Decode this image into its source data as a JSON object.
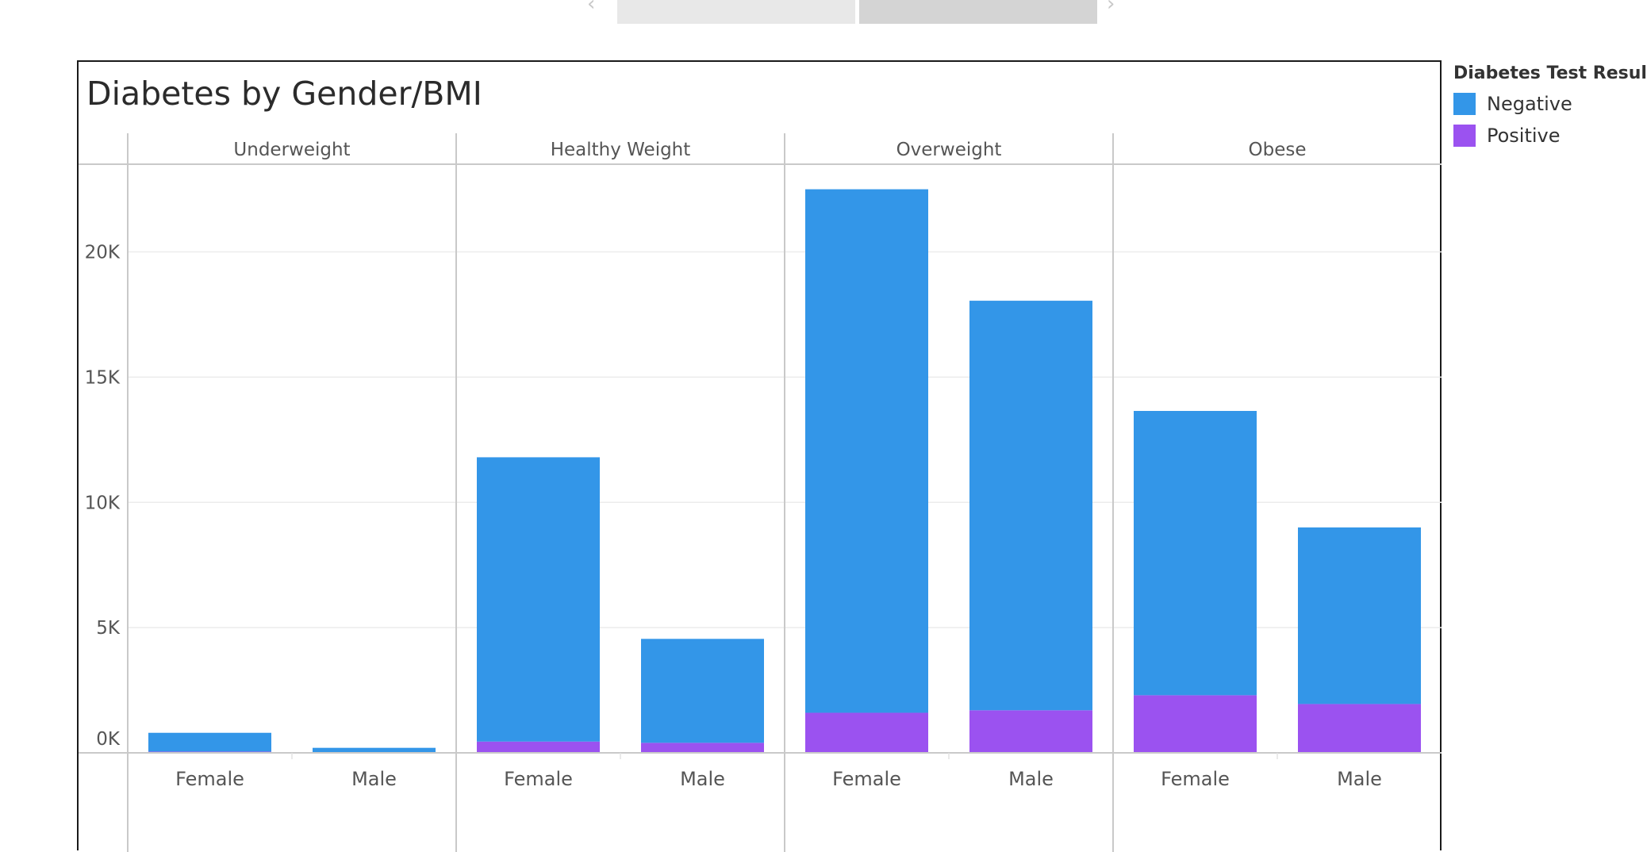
{
  "legend": {
    "title": "Diabetes Test Results",
    "items": [
      {
        "label": "Negative",
        "color": "#3396e8"
      },
      {
        "label": "Positive",
        "color": "#9b52f0"
      }
    ]
  },
  "chart_data": {
    "type": "bar",
    "stacked": true,
    "title": "Diabetes by Gender/BMI",
    "groups": [
      "Underweight",
      "Healthy Weight",
      "Overweight",
      "Obese"
    ],
    "categories": [
      "Female",
      "Male"
    ],
    "series": [
      {
        "name": "Negative",
        "color": "#3396e8",
        "values": [
          [
            750,
            180
          ],
          [
            11350,
            4150
          ],
          [
            20900,
            16350
          ],
          [
            11350,
            7050
          ]
        ]
      },
      {
        "name": "Positive",
        "color": "#9b52f0",
        "values": [
          [
            50,
            20
          ],
          [
            450,
            400
          ],
          [
            1600,
            1700
          ],
          [
            2300,
            1950
          ]
        ]
      }
    ],
    "y_ticks": [
      {
        "value": 0,
        "label": "0K"
      },
      {
        "value": 5000,
        "label": "5K"
      },
      {
        "value": 10000,
        "label": "10K"
      },
      {
        "value": 15000,
        "label": "15K"
      },
      {
        "value": 20000,
        "label": "20K"
      }
    ],
    "ylim": [
      0,
      23500
    ],
    "grid": true
  }
}
